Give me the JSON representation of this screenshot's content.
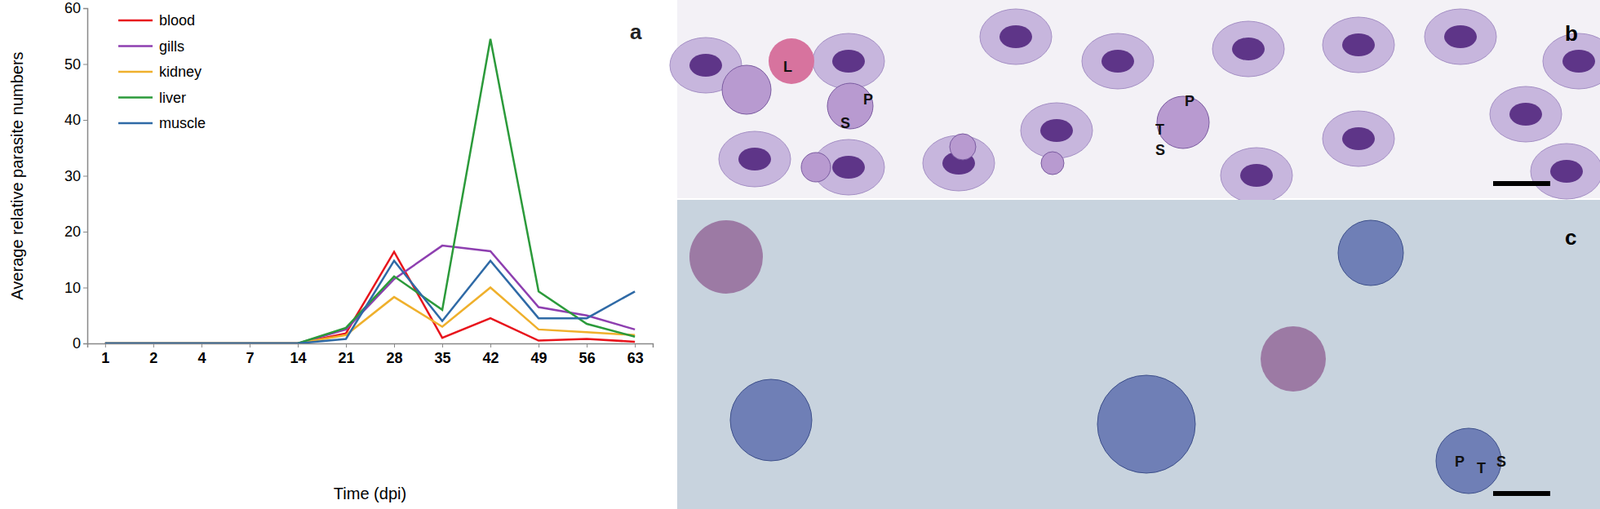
{
  "chart_data": {
    "type": "line",
    "panel_label": "a",
    "x_label": "Time (dpi)",
    "y_label": "Average relative parasite numbers",
    "categories": [
      "1",
      "2",
      "4",
      "7",
      "14",
      "21",
      "28",
      "35",
      "42",
      "49",
      "56",
      "63"
    ],
    "ylim": [
      0,
      60
    ],
    "yticks": [
      0,
      10,
      20,
      30,
      40,
      50,
      60
    ],
    "grid": false,
    "legend": "upper left",
    "series": [
      {
        "name": "blood",
        "color": "#e8141c",
        "values": [
          0,
          0,
          0,
          0,
          0,
          1.8,
          16.4,
          1.0,
          4.5,
          0.5,
          0.8,
          0.3
        ]
      },
      {
        "name": "gills",
        "color": "#8e3fb0",
        "values": [
          0,
          0,
          0,
          0,
          0,
          2.5,
          11.5,
          17.5,
          16.5,
          6.5,
          5.0,
          2.5
        ]
      },
      {
        "name": "kidney",
        "color": "#efb02c",
        "values": [
          0,
          0,
          0,
          0,
          0,
          1.5,
          8.3,
          3.0,
          10.0,
          2.5,
          2.0,
          1.5
        ]
      },
      {
        "name": "liver",
        "color": "#2b9a3a",
        "values": [
          0,
          0,
          0,
          0,
          0,
          2.8,
          12.0,
          6.0,
          54.5,
          9.3,
          3.5,
          1.2
        ]
      },
      {
        "name": "muscle",
        "color": "#2f6aa6",
        "values": [
          0,
          0,
          0,
          0,
          0,
          0.8,
          14.8,
          4.0,
          14.8,
          4.5,
          4.5,
          9.3
        ]
      }
    ]
  },
  "panels": [
    {
      "letter": "b",
      "labels": [
        "L",
        "P",
        "S",
        "P",
        "T",
        "S"
      ]
    },
    {
      "letter": "c",
      "labels": [
        "P",
        "T",
        "S"
      ]
    }
  ]
}
